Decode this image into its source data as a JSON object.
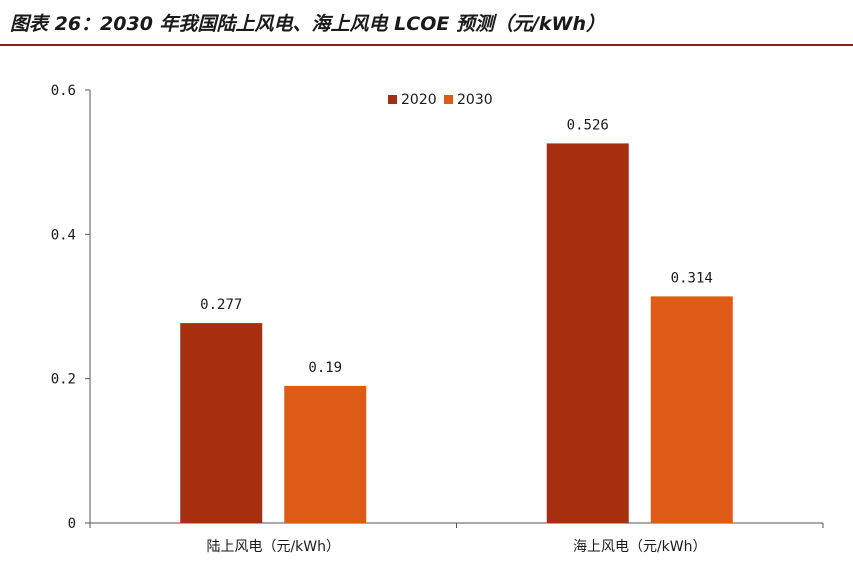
{
  "page_title": "图表 26：2030 年我国陆上风电、海上风电 LCOE 预测（元/kWh）",
  "chart_data": {
    "type": "bar",
    "categories": [
      "陆上风电（元/kWh）",
      "海上风电（元/kWh）"
    ],
    "series": [
      {
        "name": "2020",
        "values": [
          0.277,
          0.526
        ],
        "labels": [
          "0.277",
          "0.526"
        ],
        "color": "#a52f0f"
      },
      {
        "name": "2030",
        "values": [
          0.19,
          0.314
        ],
        "labels": [
          "0.19",
          "0.314"
        ],
        "color": "#dd5a17"
      }
    ],
    "ylim": [
      0,
      0.6
    ],
    "yticks": [
      "0",
      "0.2",
      "0.4",
      "0.6"
    ],
    "yticks_values": [
      0,
      0.2,
      0.4,
      0.6
    ],
    "legend_position": "top-center",
    "grid": false,
    "title_rule_color": "#8c1d18"
  }
}
